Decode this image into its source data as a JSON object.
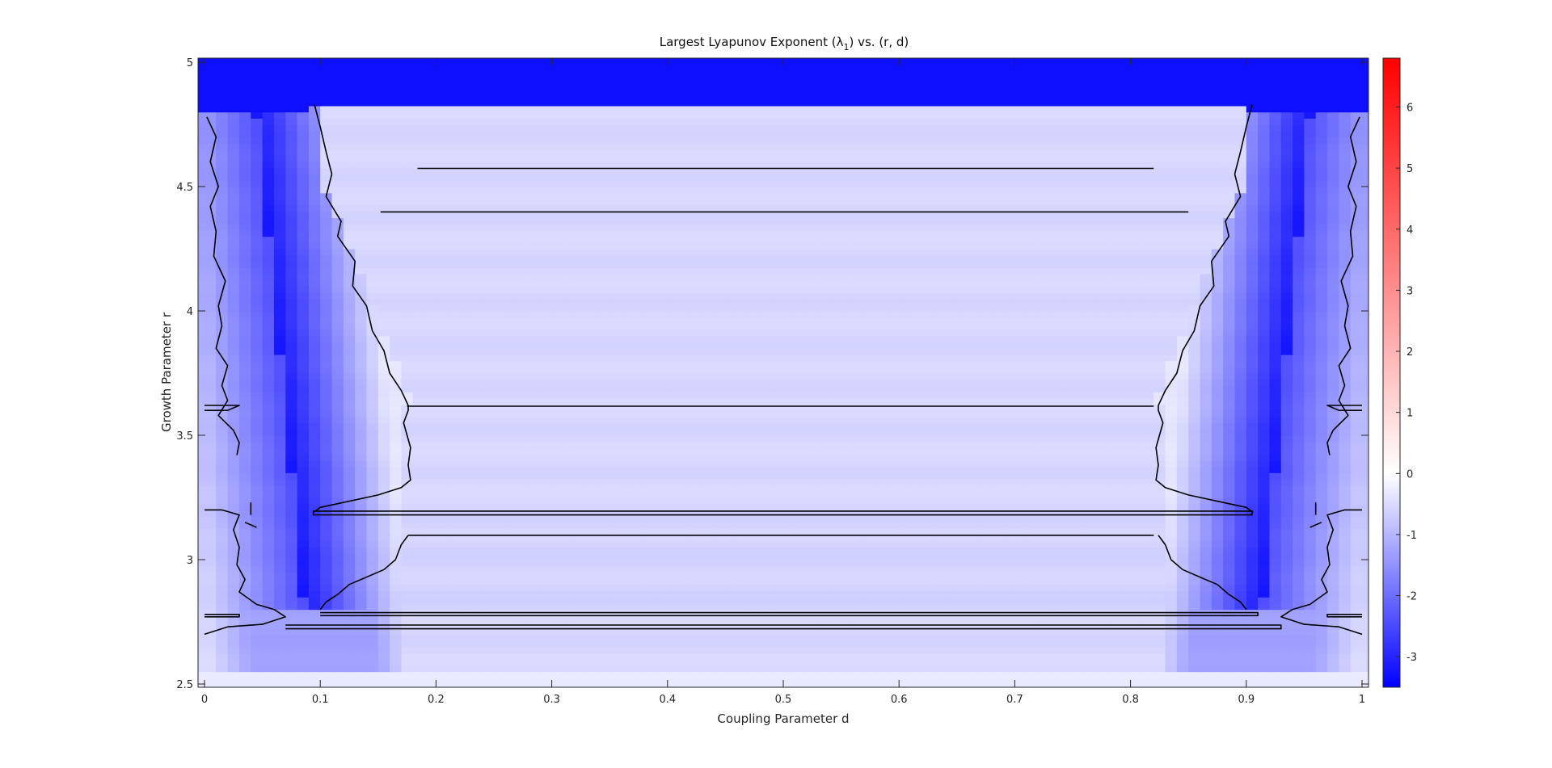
{
  "chart_data": {
    "type": "heatmap",
    "title": "Largest Lyapunov Exponent (λ",
    "title_subscript": "1",
    "title_suffix": ") vs. (r, d)",
    "xlabel": "Coupling Parameter d",
    "ylabel": "Growth Parameter r",
    "xlim": [
      0,
      1
    ],
    "ylim": [
      2.5,
      5
    ],
    "x_ticks": [
      0,
      0.1,
      0.2,
      0.3,
      0.4,
      0.5,
      0.6,
      0.7,
      0.8,
      0.9,
      1
    ],
    "x_tick_labels": [
      "0",
      "0.1",
      "0.2",
      "0.3",
      "0.4",
      "0.5",
      "0.6",
      "0.7",
      "0.8",
      "0.9",
      "1"
    ],
    "y_ticks": [
      2.5,
      3,
      3.5,
      4,
      4.5,
      5
    ],
    "y_tick_labels": [
      "2.5",
      "3",
      "3.5",
      "4",
      "4.5",
      "5"
    ],
    "colorbar": {
      "colormap": "blue-white-red",
      "min_color": "#0000ff",
      "mid_color": "#ffffff",
      "max_color": "#ff0000",
      "clim": [
        -3.5,
        6.8
      ],
      "ticks": [
        -3,
        -2,
        -1,
        0,
        1,
        2,
        3,
        4,
        5,
        6
      ],
      "tick_labels": [
        "-3",
        "-2",
        "-1",
        "0",
        "1",
        "2",
        "3",
        "4",
        "5",
        "6"
      ]
    },
    "contour_level": 0,
    "contour_color": "#000000",
    "grid": false
  }
}
